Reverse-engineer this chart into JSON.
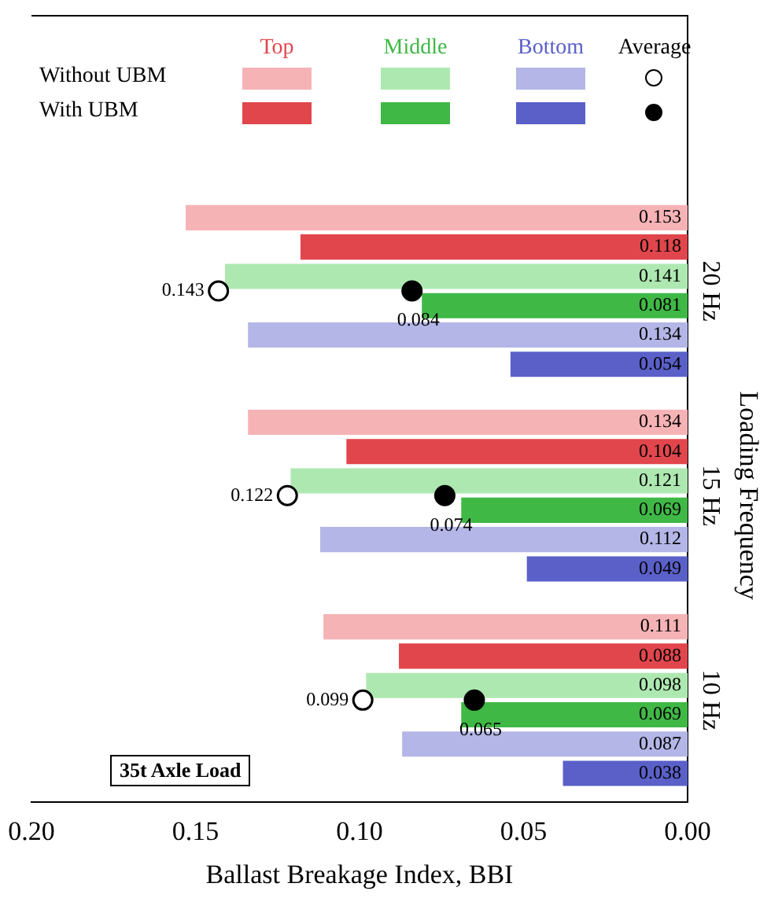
{
  "chart_data": {
    "type": "bar",
    "orientation": "horizontal",
    "categories": [
      "20 Hz",
      "15 Hz",
      "10 Hz"
    ],
    "series": [
      {
        "color": "#f6b3b6",
        "values": [
          0.153,
          0.134,
          0.111
        ]
      },
      {
        "name": "Top",
        "color": "#e0464c",
        "values": [
          0.118,
          0.104,
          0.088
        ]
      },
      {
        "color": "#aee8b1",
        "values": [
          0.141,
          0.121,
          0.098
        ]
      },
      {
        "name": "Middle",
        "color": "#3fb846",
        "values": [
          0.081,
          0.069,
          0.069
        ]
      },
      {
        "color": "#b3b6e6",
        "values": [
          0.134,
          0.112,
          0.087
        ]
      },
      {
        "name": "Bottom",
        "color": "#5a60c8",
        "values": [
          0.054,
          0.049,
          0.038
        ]
      },
      {
        "type": "scatter",
        "color": "#000000",
        "marker": "circle",
        "values": [
          0.143,
          0.122,
          0.099
        ]
      },
      {
        "name": "Average",
        "type": "scatter",
        "color": "#000000",
        "marker": "circle",
        "values": [
          0.084,
          0.074,
          0.065
        ]
      }
    ],
    "xlim": [
      0.2,
      0.0
    ],
    "xticks": [
      {
        "value": 0.2,
        "label": "0.20"
      },
      {
        "value": 0.15,
        "label": "0.15"
      },
      {
        "value": 0.1,
        "label": "0.10"
      },
      {
        "value": 0.05,
        "label": "0.05"
      },
      {
        "value": 0,
        "label": "0.00"
      }
    ],
    "xlabel": "Ballast Breakage Index, BBI",
    "ylabel": "Loading Frequency",
    "annotations": [
      "Without UBM",
      "With UBM",
      "35t Axle Load"
    ],
    "data_labels": true,
    "legend": "top"
  }
}
